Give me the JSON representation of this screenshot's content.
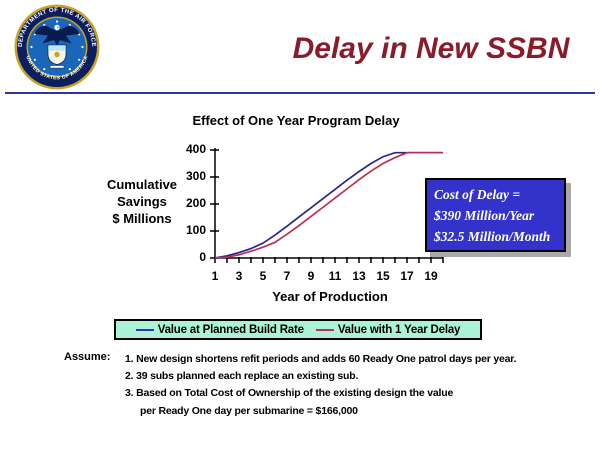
{
  "slide": {
    "title": "Delay in New SSBN",
    "title_color": "#8B1B2B",
    "rule_color": "#333399",
    "seal": {
      "top_text": "DEPARTMENT OF THE AIR FORCE",
      "bottom_text": "UNITED STATES OF AMERICA"
    }
  },
  "chart_data": {
    "type": "line",
    "title": "Effect of One Year Program Delay",
    "xlabel": "Year of Production",
    "ylabel": "Cumulative Savings $ Millions",
    "ylabel_lines": [
      "Cumulative",
      "Savings",
      "$ Millions"
    ],
    "xlim": [
      1,
      20
    ],
    "ylim": [
      0,
      400
    ],
    "grid": false,
    "legend_position": "bottom",
    "x": [
      1,
      2,
      3,
      4,
      5,
      6,
      7,
      8,
      9,
      10,
      11,
      12,
      13,
      14,
      15,
      16,
      17,
      18,
      19,
      20
    ],
    "xticks_labeled": [
      1,
      3,
      5,
      7,
      9,
      11,
      13,
      15,
      17,
      19
    ],
    "yticks": [
      0,
      100,
      200,
      300,
      400
    ],
    "series": [
      {
        "name": "Value at Planned Build Rate",
        "color": "#26268C",
        "values": [
          0,
          8,
          20,
          35,
          55,
          85,
          118,
          152,
          186,
          220,
          254,
          288,
          320,
          350,
          375,
          390,
          390,
          390,
          390,
          390
        ]
      },
      {
        "name": "Value with 1 Year Delay",
        "color": "#BE2D54",
        "values": [
          0,
          3,
          12,
          25,
          40,
          58,
          88,
          120,
          154,
          188,
          222,
          256,
          290,
          322,
          350,
          372,
          390,
          390,
          390,
          390
        ]
      }
    ]
  },
  "annotation_box": {
    "bg_color": "#3333CC",
    "text_color": "#FFFFF0",
    "shadow_color": "#A9A9A9",
    "lines": [
      "Cost of Delay  =",
      "$390 Million/Year",
      "$32.5 Million/Month"
    ]
  },
  "legend": {
    "bg_color": "#ABF3D6",
    "items": [
      {
        "label": "Value at Planned Build Rate",
        "color": "#3333B0"
      },
      {
        "label": "Value with 1 Year Delay",
        "color": "#BE2D54"
      }
    ]
  },
  "assumptions": {
    "label": "Assume:",
    "items": [
      "1. New design shortens refit periods and adds 60 Ready One patrol days per year.",
      "2. 39 subs planned each replace an existing sub.",
      "3. Based on Total Cost of Ownership of the existing design the value",
      "per Ready One day per submarine  = $166,000"
    ]
  }
}
